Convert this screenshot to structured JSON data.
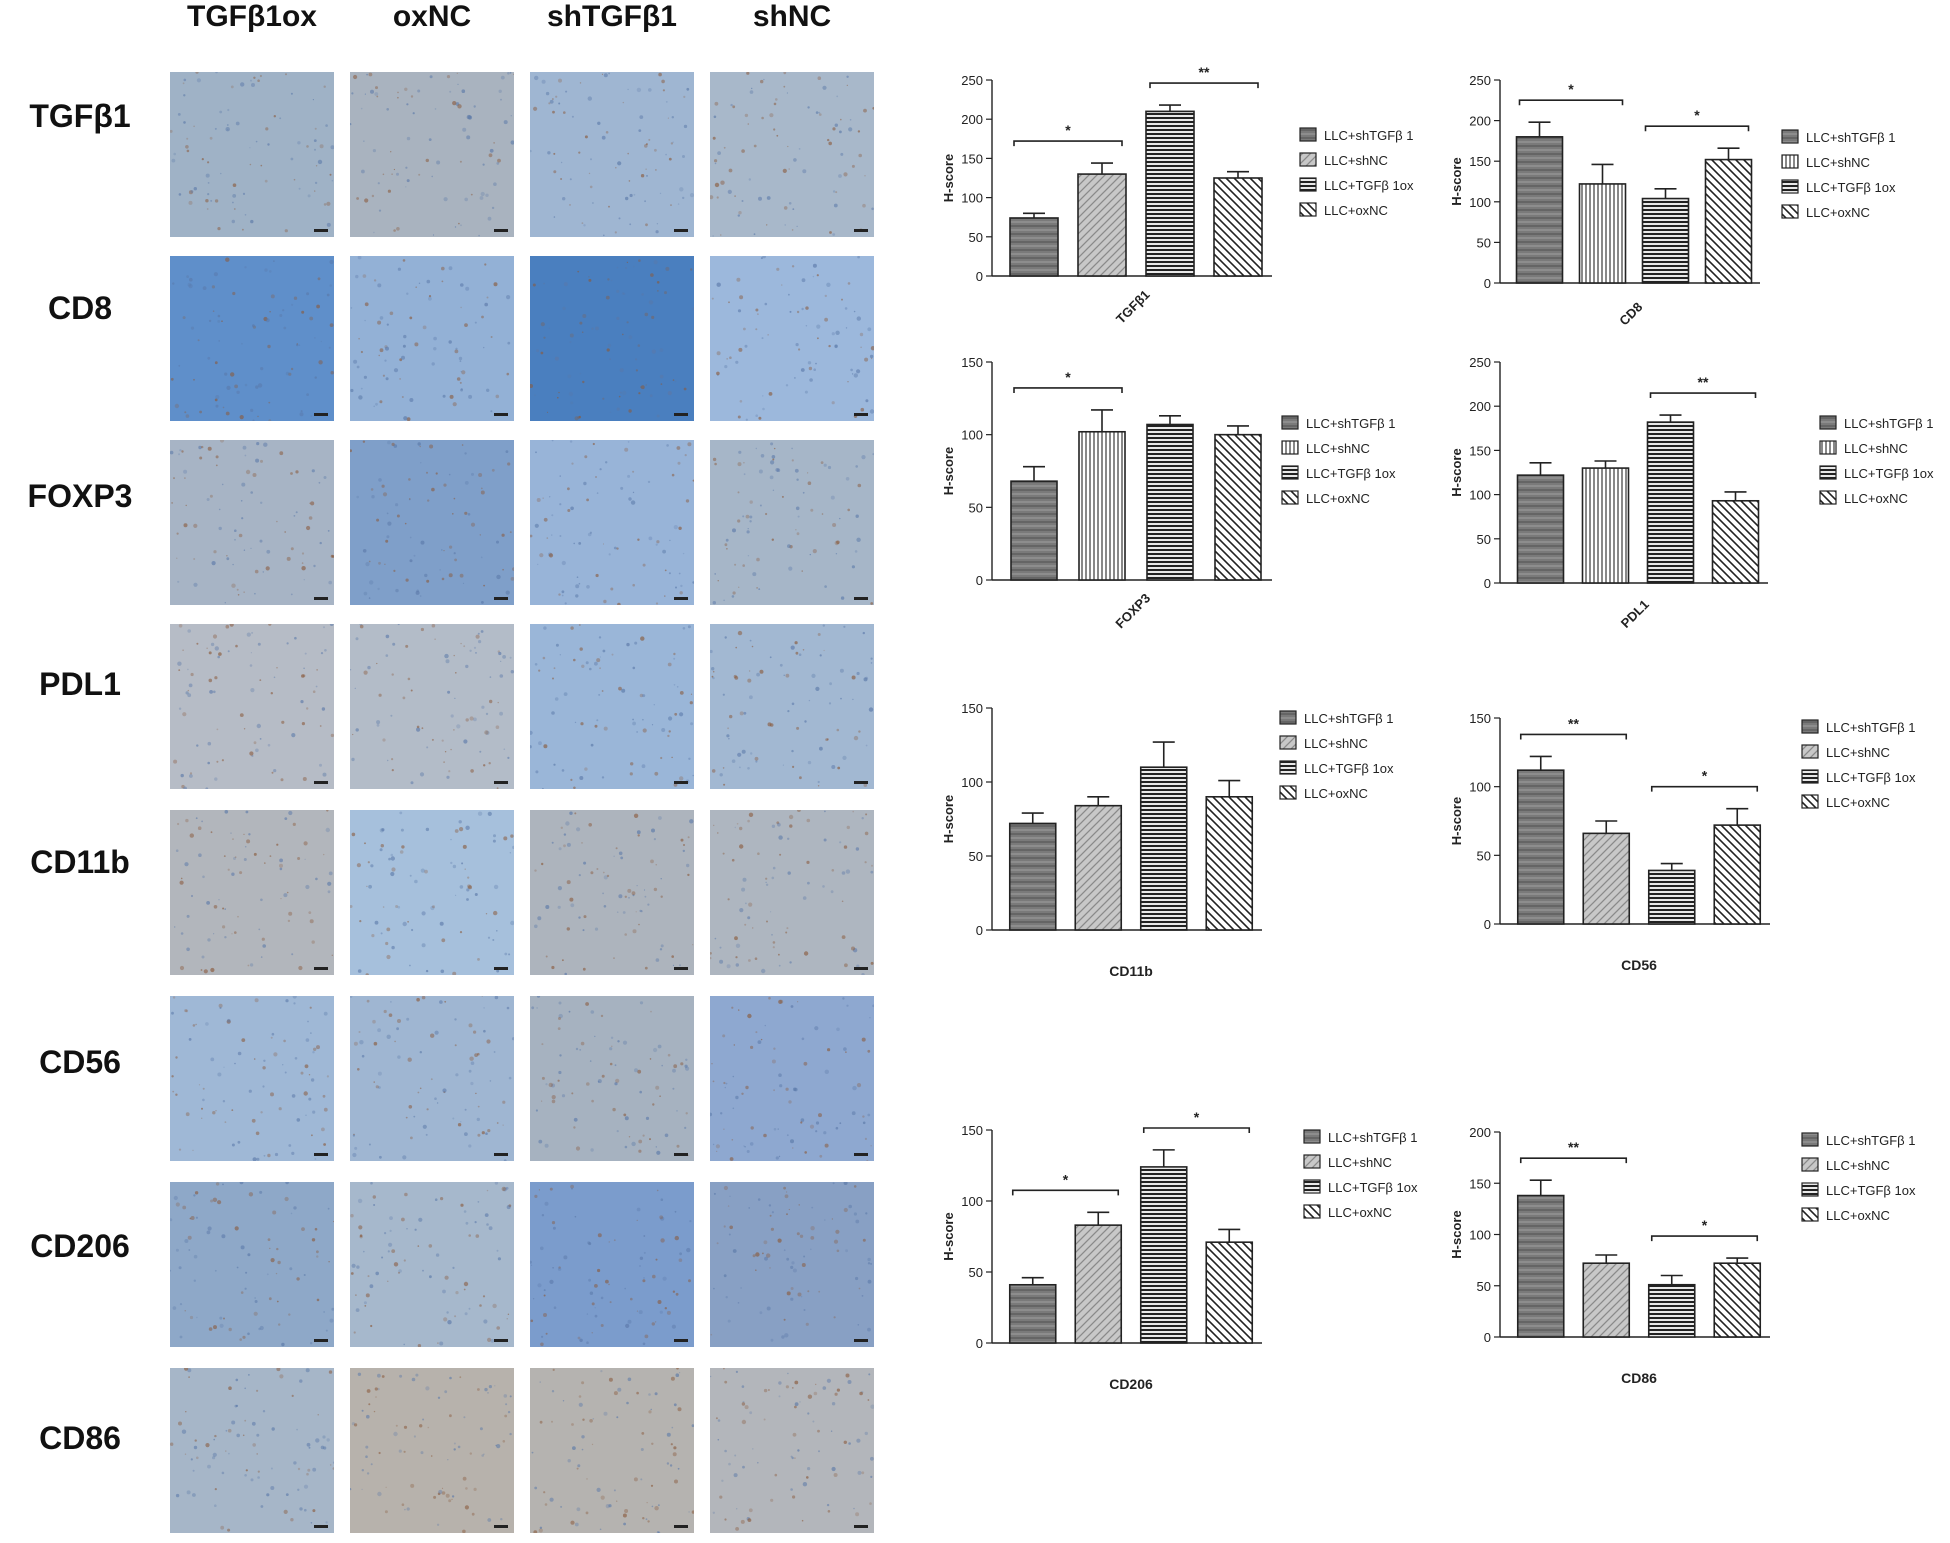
{
  "micrograph_panel": {
    "columns": [
      "TGFβ1ox",
      "oxNC",
      "shTGFβ1",
      "shNC"
    ],
    "rows": [
      "TGFβ1",
      "CD8",
      "FOXP3",
      "PDL1",
      "CD11b",
      "CD56",
      "CD206",
      "CD86"
    ],
    "tile_tint": [
      [
        "#9fb2c6",
        "#a9b3bf",
        "#9fb6d2",
        "#a8b8ca"
      ],
      [
        "#5f8fca",
        "#93b1d6",
        "#4a7fbf",
        "#9cb8dc"
      ],
      [
        "#a7b4c5",
        "#7f9fc9",
        "#98b4d8",
        "#a6b6c8"
      ],
      [
        "#b6bcc6",
        "#b3bcc8",
        "#9ab6d8",
        "#a2b8d2"
      ],
      [
        "#b2b6bc",
        "#a6c0dc",
        "#adb4bd",
        "#aeb6c0"
      ],
      [
        "#9fb8d6",
        "#9fb6d2",
        "#a6b2c0",
        "#8ea8d0"
      ],
      [
        "#8ea8c8",
        "#a6b8cc",
        "#7b9ccc",
        "#88a0c4"
      ],
      [
        "#a6b6c8",
        "#b7b2ac",
        "#b5b3b0",
        "#b3b6bb"
      ]
    ],
    "stain_color": "#8a5a3c"
  },
  "legend_labels": [
    "LLC+shTGFβ 1",
    "LLC+shNC",
    "LLC+TGFβ 1ox",
    "LLC+oxNC"
  ],
  "chart_data": [
    {
      "type": "bar",
      "xlabel": "TGFβ1",
      "ylabel": "H-score",
      "ylim": [
        0,
        250
      ],
      "ticks": [
        0,
        50,
        100,
        150,
        200,
        250
      ],
      "categories": [
        "LLC+shTGFβ 1",
        "LLC+shNC",
        "LLC+TGFβ 1ox",
        "LLC+oxNC"
      ],
      "values": [
        74,
        130,
        210,
        125
      ],
      "errors": [
        6,
        14,
        8,
        8
      ],
      "significance": [
        {
          "from": 0,
          "to": 1,
          "label": "*"
        },
        {
          "from": 2,
          "to": 3,
          "label": "**"
        }
      ]
    },
    {
      "type": "bar",
      "xlabel": "CD8",
      "ylabel": "H-score",
      "ylim": [
        0,
        250
      ],
      "ticks": [
        0,
        50,
        100,
        150,
        200,
        250
      ],
      "categories": [
        "LLC+shTGFβ 1",
        "LLC+shNC",
        "LLC+TGFβ 1ox",
        "LLC+oxNC"
      ],
      "values": [
        180,
        122,
        104,
        152
      ],
      "errors": [
        18,
        24,
        12,
        14
      ],
      "significance": [
        {
          "from": 0,
          "to": 1,
          "label": "*"
        },
        {
          "from": 2,
          "to": 3,
          "label": "*"
        }
      ]
    },
    {
      "type": "bar",
      "xlabel": "FOXP3",
      "ylabel": "H-score",
      "ylim": [
        0,
        150
      ],
      "ticks": [
        0,
        50,
        100,
        150
      ],
      "categories": [
        "LLC+shTGFβ 1",
        "LLC+shNC",
        "LLC+TGFβ 1ox",
        "LLC+oxNC"
      ],
      "values": [
        68,
        102,
        107,
        100
      ],
      "errors": [
        10,
        15,
        6,
        6
      ],
      "significance": [
        {
          "from": 0,
          "to": 1,
          "label": "*"
        }
      ]
    },
    {
      "type": "bar",
      "xlabel": "PDL1",
      "ylabel": "H-score",
      "ylim": [
        0,
        250
      ],
      "ticks": [
        0,
        50,
        100,
        150,
        200,
        250
      ],
      "categories": [
        "LLC+shTGFβ 1",
        "LLC+shNC",
        "LLC+TGFβ 1ox",
        "LLC+oxNC"
      ],
      "values": [
        122,
        130,
        182,
        93
      ],
      "errors": [
        14,
        8,
        8,
        10
      ],
      "significance": [
        {
          "from": 2,
          "to": 3,
          "label": "**"
        }
      ]
    },
    {
      "type": "bar",
      "xlabel": "CD11b",
      "ylabel": "H-score",
      "ylim": [
        0,
        150
      ],
      "ticks": [
        0,
        50,
        100,
        150
      ],
      "categories": [
        "LLC+shTGFβ 1",
        "LLC+shNC",
        "LLC+TGFβ 1ox",
        "LLC+oxNC"
      ],
      "values": [
        72,
        84,
        110,
        90
      ],
      "errors": [
        7,
        6,
        17,
        11
      ],
      "significance": []
    },
    {
      "type": "bar",
      "xlabel": "CD56",
      "ylabel": "H-score",
      "ylim": [
        0,
        150
      ],
      "ticks": [
        0,
        50,
        100,
        150
      ],
      "categories": [
        "LLC+shTGFβ 1",
        "LLC+shNC",
        "LLC+TGFβ 1ox",
        "LLC+oxNC"
      ],
      "values": [
        112,
        66,
        39,
        72
      ],
      "errors": [
        10,
        9,
        5,
        12
      ],
      "significance": [
        {
          "from": 0,
          "to": 1,
          "label": "**"
        },
        {
          "from": 2,
          "to": 3,
          "label": "*"
        }
      ]
    },
    {
      "type": "bar",
      "xlabel": "CD206",
      "ylabel": "H-score",
      "ylim": [
        0,
        150
      ],
      "ticks": [
        0,
        50,
        100,
        150
      ],
      "categories": [
        "LLC+shTGFβ 1",
        "LLC+shNC",
        "LLC+TGFβ 1ox",
        "LLC+oxNC"
      ],
      "values": [
        41,
        83,
        124,
        71
      ],
      "errors": [
        5,
        9,
        12,
        9
      ],
      "significance": [
        {
          "from": 0,
          "to": 1,
          "label": "*"
        },
        {
          "from": 2,
          "to": 3,
          "label": "*"
        }
      ]
    },
    {
      "type": "bar",
      "xlabel": "CD86",
      "ylabel": "H-score",
      "ylim": [
        0,
        200
      ],
      "ticks": [
        0,
        50,
        100,
        150,
        200
      ],
      "categories": [
        "LLC+shTGFβ 1",
        "LLC+shNC",
        "LLC+TGFβ 1ox",
        "LLC+oxNC"
      ],
      "values": [
        138,
        72,
        51,
        72
      ],
      "errors": [
        15,
        8,
        9,
        5
      ],
      "significance": [
        {
          "from": 0,
          "to": 1,
          "label": "**"
        },
        {
          "from": 2,
          "to": 3,
          "label": "*"
        }
      ]
    }
  ]
}
